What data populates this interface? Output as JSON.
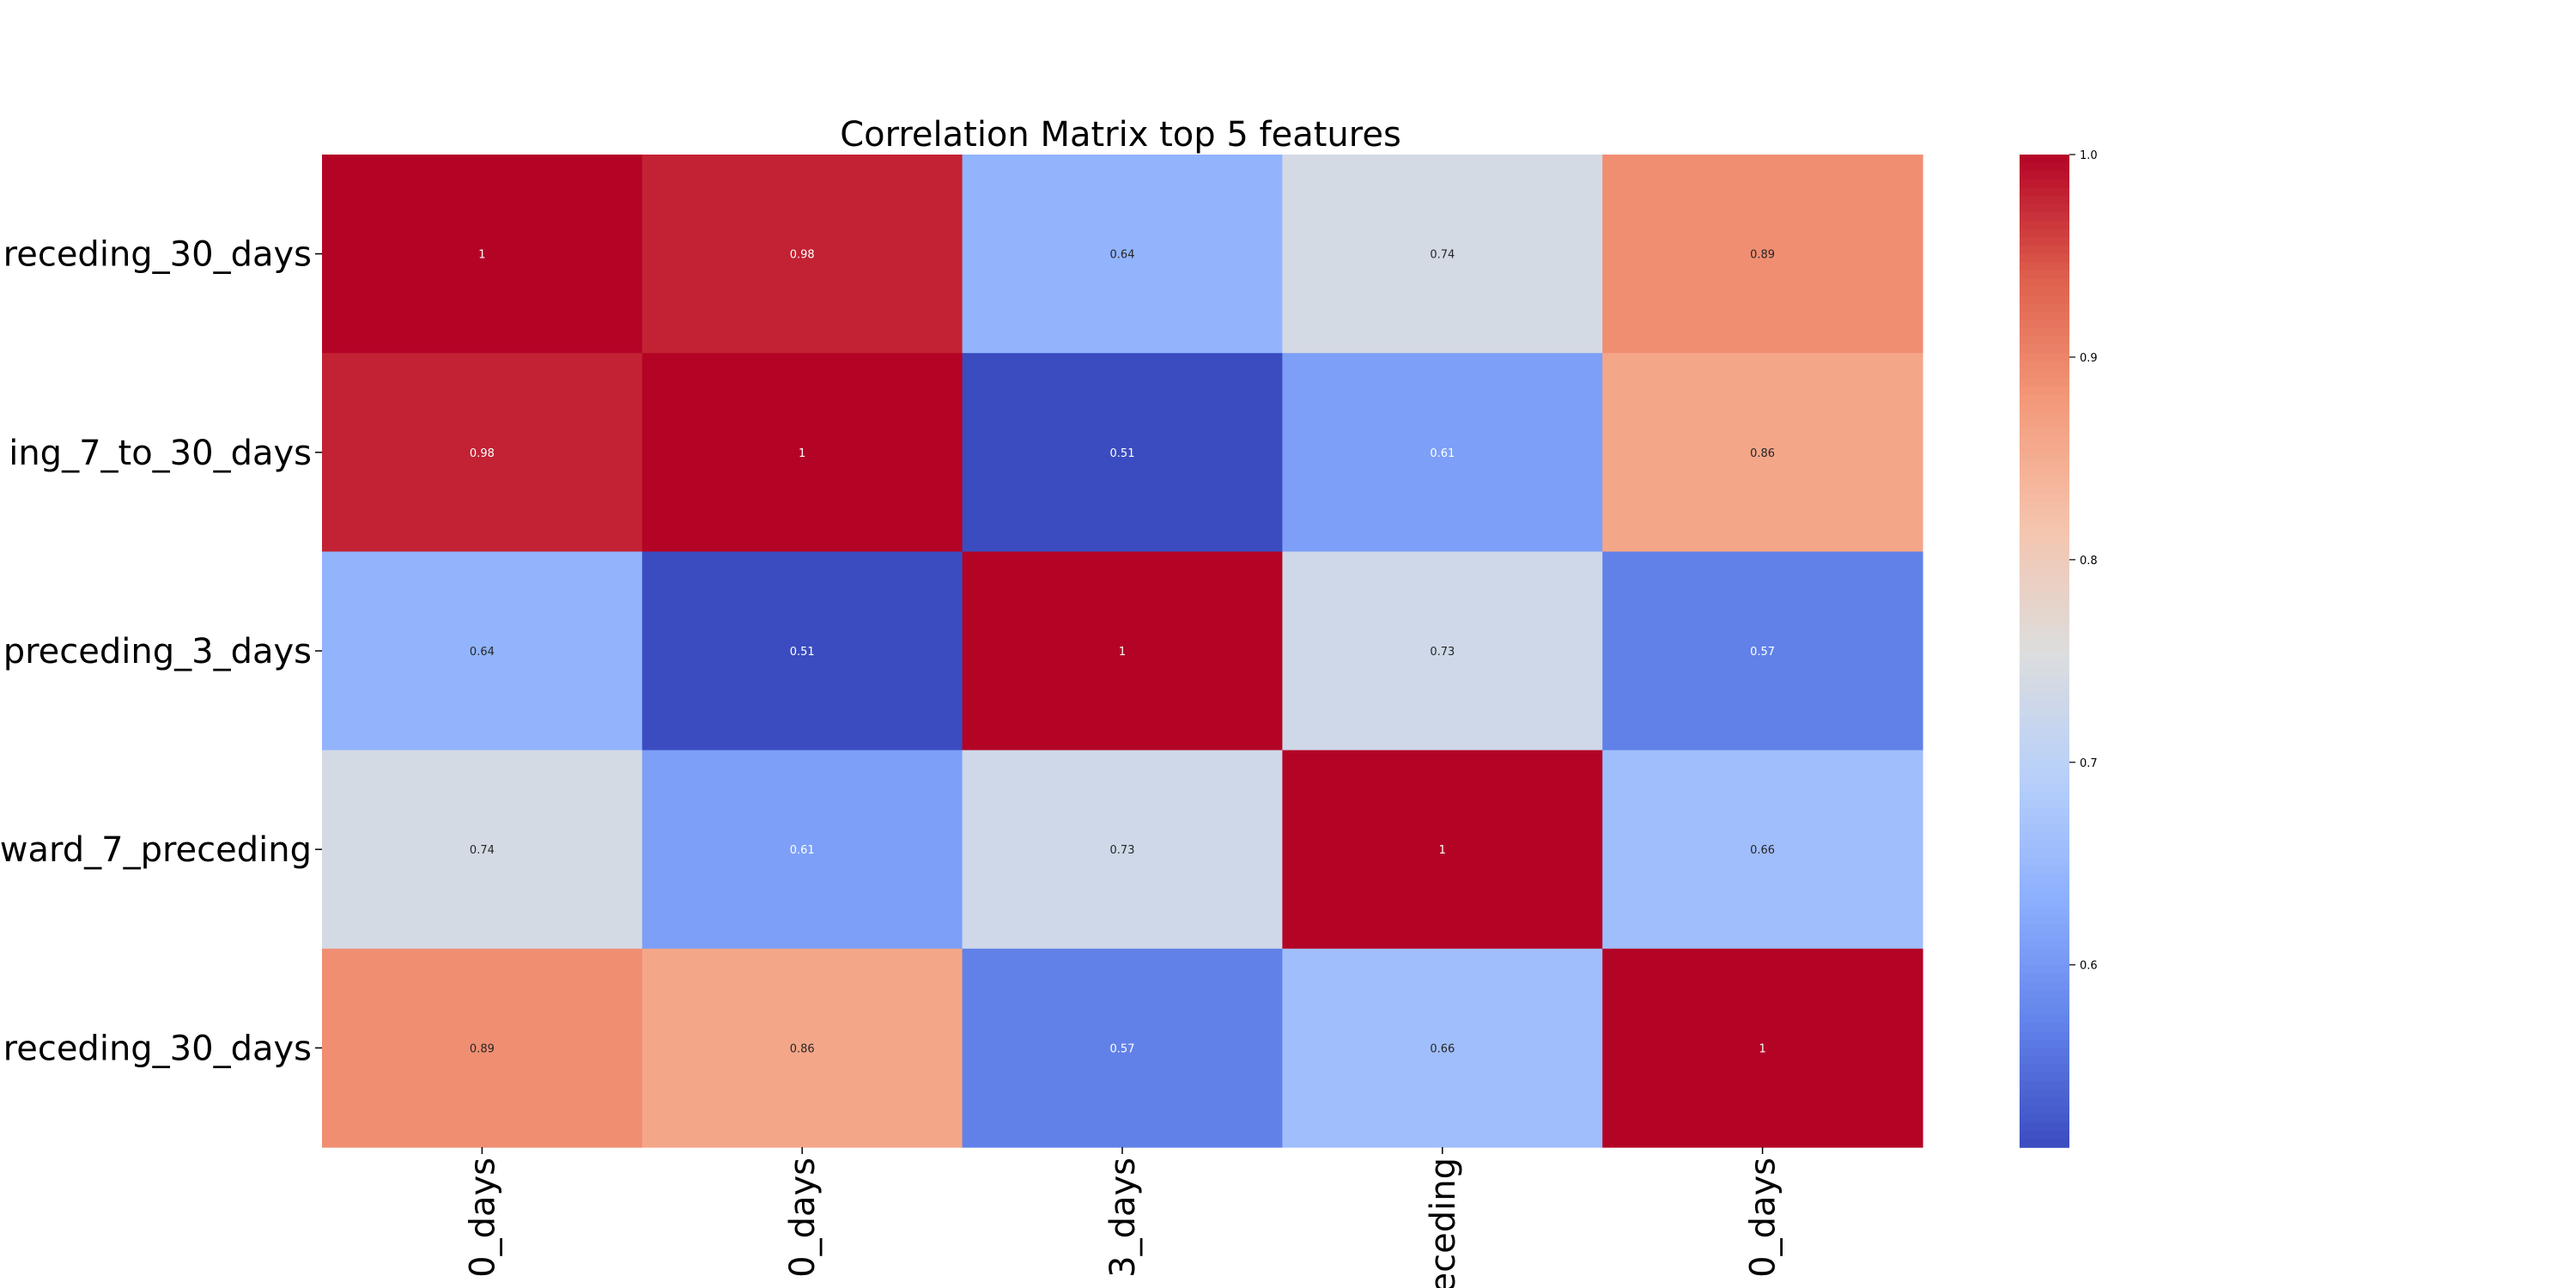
{
  "chart_data": {
    "type": "heatmap",
    "title": "Correlation Matrix top 5 features",
    "row_labels": [
      "receding_30_days",
      "ing_7_to_30_days",
      "preceding_3_days",
      "ward_7_preceding",
      "receding_30_days"
    ],
    "col_labels": [
      "0_days",
      "0_days",
      "3_days",
      "eceding",
      "0_days"
    ],
    "values": [
      [
        1,
        0.98,
        0.64,
        0.74,
        0.89
      ],
      [
        0.98,
        1,
        0.51,
        0.61,
        0.86
      ],
      [
        0.64,
        0.51,
        1,
        0.73,
        0.57
      ],
      [
        0.74,
        0.61,
        0.73,
        1,
        0.66
      ],
      [
        0.89,
        0.86,
        0.57,
        0.66,
        1
      ]
    ],
    "value_labels": [
      [
        "1",
        "0.98",
        "0.64",
        "0.74",
        "0.89"
      ],
      [
        "0.98",
        "1",
        "0.51",
        "0.61",
        "0.86"
      ],
      [
        "0.64",
        "0.51",
        "1",
        "0.73",
        "0.57"
      ],
      [
        "0.74",
        "0.61",
        "0.73",
        "1",
        "0.66"
      ],
      [
        "0.89",
        "0.86",
        "0.57",
        "0.66",
        "1"
      ]
    ],
    "colormap": "coolwarm",
    "vmin": 0.51,
    "vmax": 1.0,
    "colorbar": {
      "ticks": [
        0.6,
        0.7,
        0.8,
        0.9,
        1.0
      ],
      "tick_labels": [
        "0.6",
        "0.7",
        "0.8",
        "0.9",
        "1.0"
      ],
      "position": "right"
    },
    "annotations": true,
    "grid": false
  }
}
